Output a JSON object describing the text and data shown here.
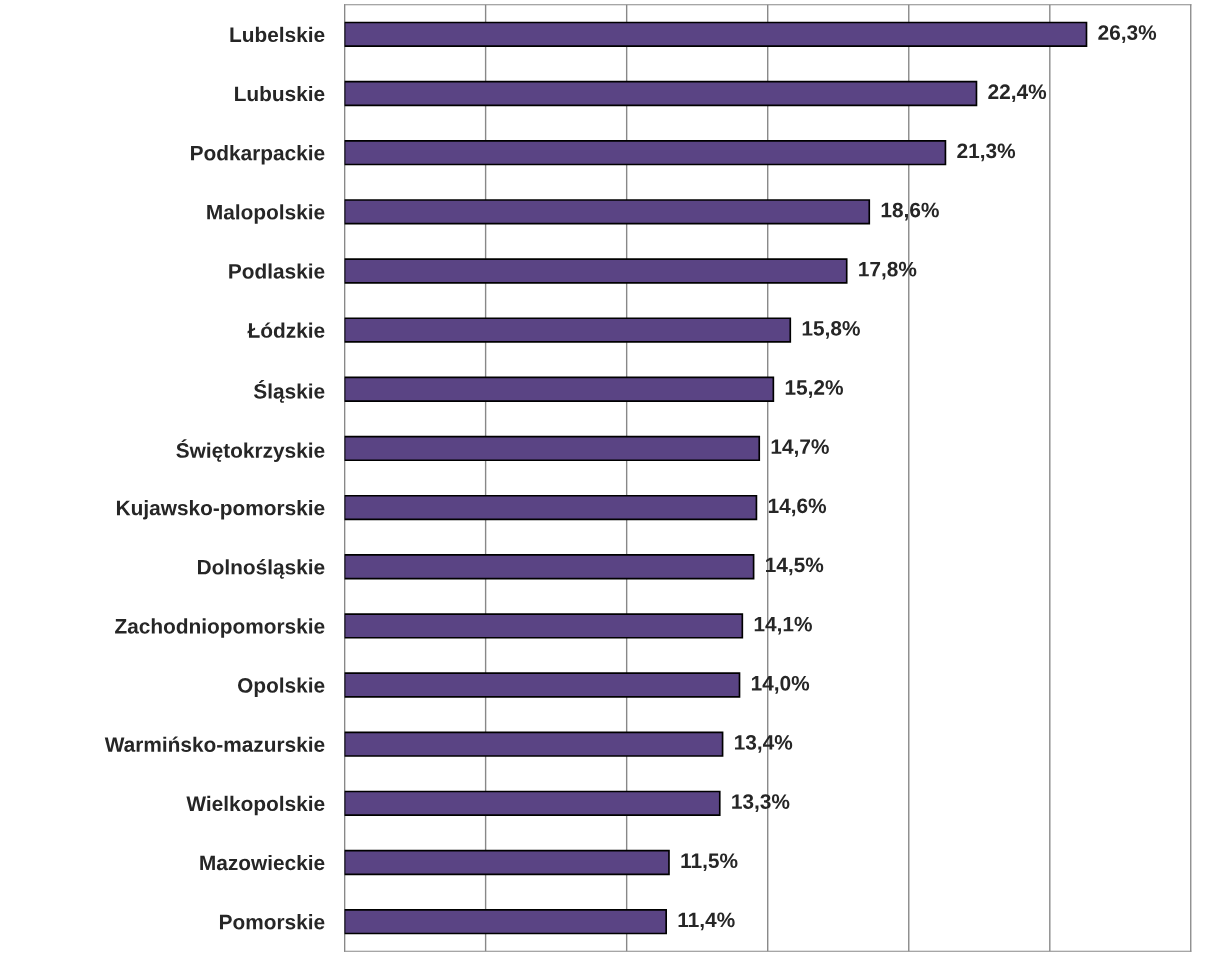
{
  "chart_data": {
    "type": "bar",
    "orientation": "horizontal",
    "categories": [
      "Lubelskie",
      "Lubuskie",
      "Podkarpackie",
      "Malopolskie",
      "Podlaskie",
      "Łódzkie",
      "Śląskie",
      "Świętokrzyskie",
      "Kujawsko-pomorskie",
      "Dolnośląskie",
      "Zachodniopomorskie",
      "Opolskie",
      "Warmińsko-mazurskie",
      "Wielkopolskie",
      "Mazowieckie",
      "Pomorskie"
    ],
    "values": [
      26.3,
      22.4,
      21.3,
      18.6,
      17.8,
      15.8,
      15.2,
      14.7,
      14.6,
      14.5,
      14.1,
      14.0,
      13.4,
      13.3,
      11.5,
      11.4
    ],
    "value_labels": [
      "26,3%",
      "22,4%",
      "21,3%",
      "18,6%",
      "17,8%",
      "15,8%",
      "15,2%",
      "14,7%",
      "14,6%",
      "14,5%",
      "14,1%",
      "14,0%",
      "13,4%",
      "13,3%",
      "11,5%",
      "11,4%"
    ],
    "color": "#5a4484",
    "xlim": [
      0,
      30
    ],
    "xticks": [
      {
        "value": 0,
        "label": null
      },
      {
        "value": 5,
        "label": null
      },
      {
        "value": 10,
        "label": null
      },
      {
        "value": 15,
        "label": null
      },
      {
        "value": 20,
        "label": null
      },
      {
        "value": 25,
        "label": null
      },
      {
        "value": 30,
        "label": null
      }
    ],
    "grid": "x",
    "tick_labels": "y"
  }
}
